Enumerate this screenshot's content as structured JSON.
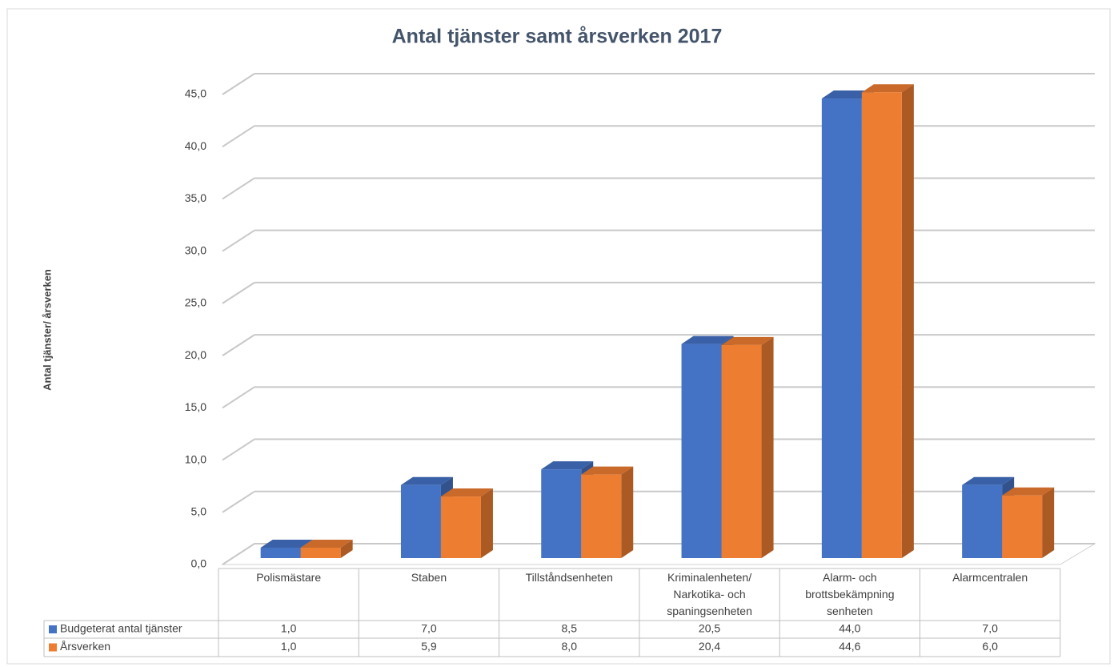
{
  "chart_data": {
    "type": "bar3d",
    "title": "Antal tjänster samt årsverken 2017",
    "y_label": "Antal tjänster/ årsverken",
    "categories": [
      "Polismästare",
      "Staben",
      "Tillståndsenheten",
      "Kriminalenheten/\nNarkotika- och\nspaningsenheten",
      "Alarm- och\nbrottsbekämpning\nsenheten",
      "Alarmcentralen"
    ],
    "series": [
      {
        "name": "Budgeterat antal tjänster",
        "color": "#4472c4",
        "values": [
          1.0,
          7.0,
          8.5,
          20.5,
          44.0,
          7.0
        ],
        "value_labels": [
          "1,0",
          "7,0",
          "8,5",
          "20,5",
          "44,0",
          "7,0"
        ]
      },
      {
        "name": "Årsverken",
        "color": "#ed7d31",
        "values": [
          1.0,
          5.9,
          8.0,
          20.4,
          44.6,
          6.0
        ],
        "value_labels": [
          "1,0",
          "5,9",
          "8,0",
          "20,4",
          "44,6",
          "6,0"
        ]
      }
    ],
    "ylim": [
      0,
      45
    ],
    "yticks": [
      {
        "value": 0,
        "label": "0,0"
      },
      {
        "value": 5,
        "label": "5,0"
      },
      {
        "value": 10,
        "label": "10,0"
      },
      {
        "value": 15,
        "label": "15,0"
      },
      {
        "value": 20,
        "label": "20,0"
      },
      {
        "value": 25,
        "label": "25,0"
      },
      {
        "value": 30,
        "label": "30,0"
      },
      {
        "value": 35,
        "label": "35,0"
      },
      {
        "value": 40,
        "label": "40,0"
      },
      {
        "value": 45,
        "label": "45,0"
      }
    ],
    "grid": true,
    "data_table": true
  }
}
